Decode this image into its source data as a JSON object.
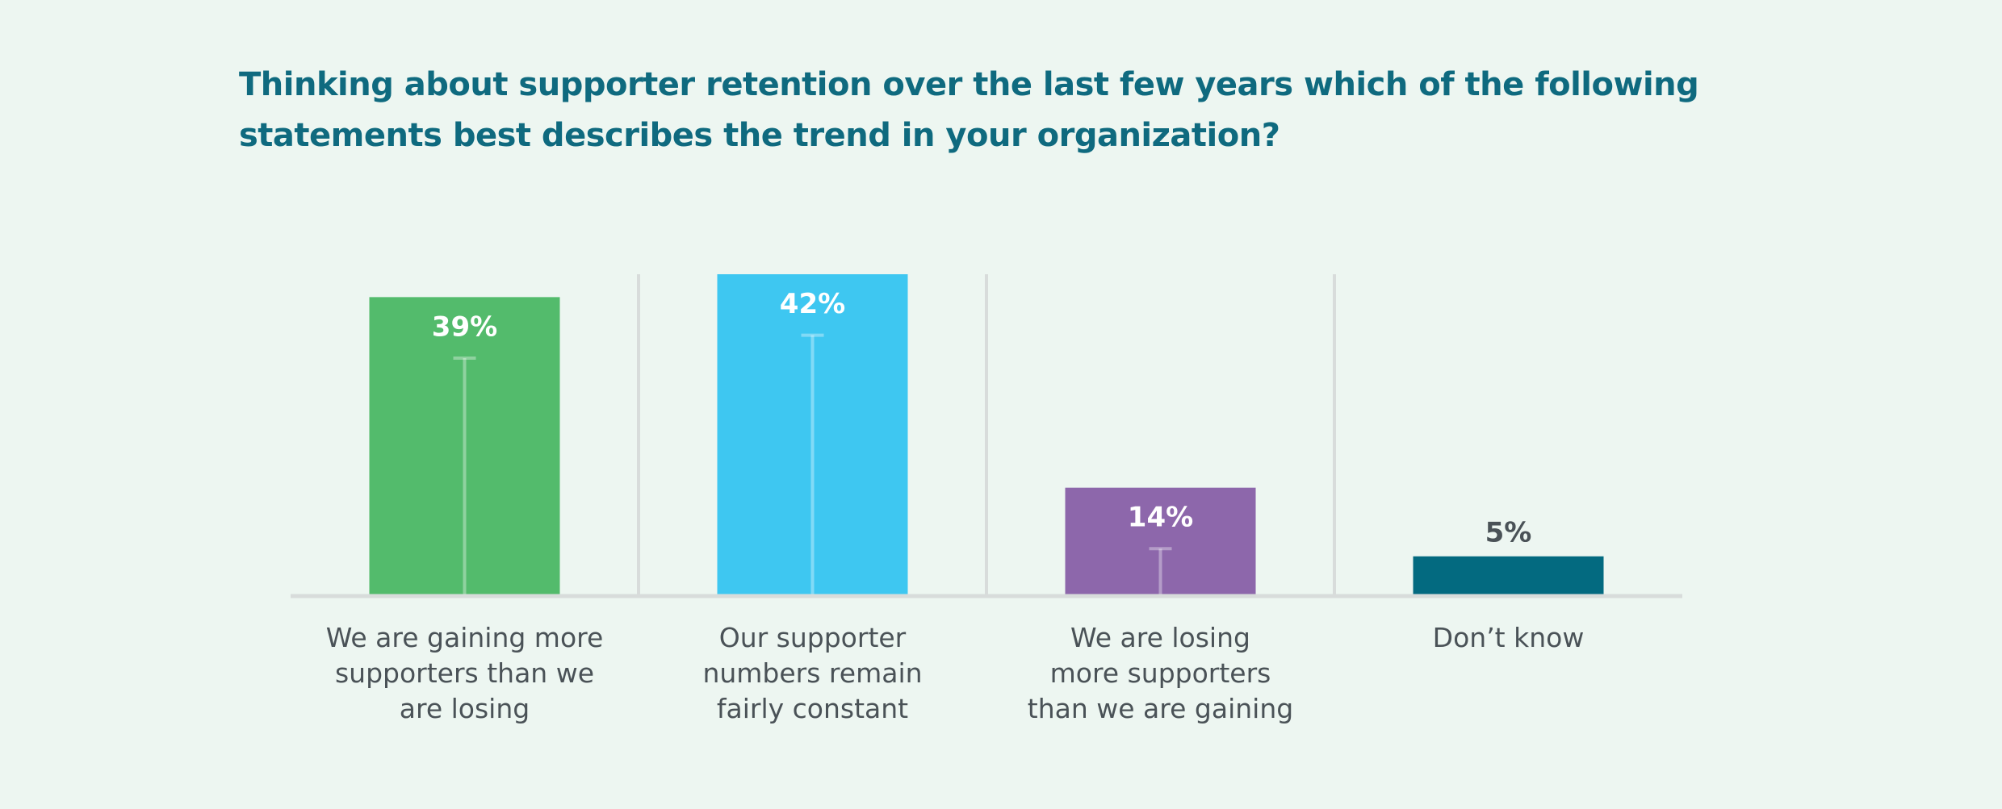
{
  "chart_data": {
    "type": "bar",
    "title": "Thinking about supporter retention over the last few years which of the following statements best describes the trend in your organization?",
    "categories": [
      "We are gaining more supporters than we are losing",
      "Our supporter numbers remain fairly constant",
      "We are losing more supporters than we are gaining",
      "Don’t know"
    ],
    "category_lines": [
      [
        "We are gaining more",
        "supporters than we",
        "are losing"
      ],
      [
        "Our supporter",
        "numbers remain",
        "fairly constant"
      ],
      [
        "We are losing",
        "more supporters",
        "than we are gaining"
      ],
      [
        "Don’t know"
      ]
    ],
    "values": [
      39,
      42,
      14,
      5
    ],
    "value_labels": [
      "39%",
      "42%",
      "14%",
      "5%"
    ],
    "error_bar_upper": [
      31,
      34,
      6,
      null
    ],
    "colors": [
      "#53bb6c",
      "#3ec7f1",
      "#8d67ab",
      "#036a80"
    ],
    "value_label_colors": [
      "#ffffff",
      "#ffffff",
      "#ffffff",
      "#4a5257"
    ],
    "ylim": [
      0,
      42
    ],
    "xlabel": "",
    "ylabel": "",
    "grid": "vertical separators",
    "legend": "none"
  }
}
